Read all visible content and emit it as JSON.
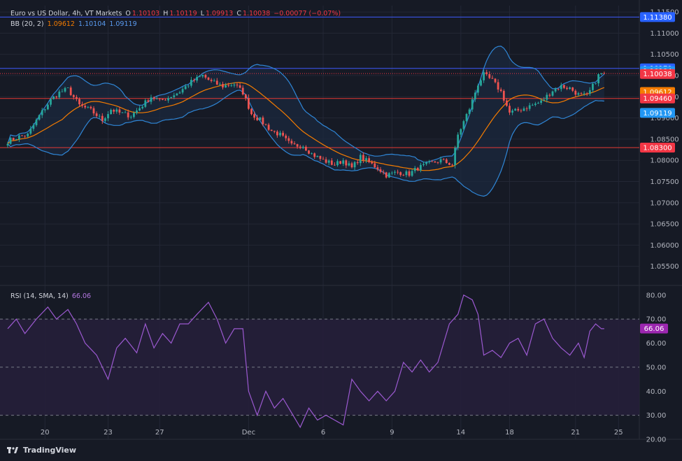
{
  "header": {
    "title": "Euro vs US Dollar, 4h, VT Markets",
    "o_label": "O",
    "o_value": "1.10103",
    "h_label": "H",
    "h_value": "1.10119",
    "l_label": "L",
    "l_value": "1.09913",
    "c_label": "C",
    "c_value": "1.10038",
    "change": "−0.00077 (−0.07%)"
  },
  "bb_legend": {
    "label": "BB (20, 2)",
    "basis": "1.09612",
    "upper": "1.10104",
    "lower": "1.09119"
  },
  "rsi_legend": {
    "label": "RSI (14, SMA, 14)",
    "value": "66.06"
  },
  "branding": {
    "logo_text": "TradingView"
  },
  "colors": {
    "background": "#161a25",
    "up": "#26a69a",
    "down": "#ef5350",
    "basis": "#f57c00",
    "band": "#2f86d6",
    "band_fill": "#1b2a3e",
    "rsi_line": "#9b59d0",
    "rsi_fill": "#251f3a",
    "hline_blue": "#3d5afe",
    "hline_red": "#e53935"
  },
  "chart_data": [
    {
      "type": "candlestick",
      "title": "Euro vs US Dollar, 4h, VT Markets",
      "ylim": [
        1.0505,
        1.1165
      ],
      "y_ticks": [
        "1.11500",
        "1.11000",
        "1.10500",
        "1.10000",
        "1.09500",
        "1.09000",
        "1.08500",
        "1.08000",
        "1.07500",
        "1.07000",
        "1.06500",
        "1.06000",
        "1.05500"
      ],
      "x_tick_labels": [
        "20",
        "23",
        "27",
        "Dec",
        "6",
        "9",
        "14",
        "18",
        "21",
        "25"
      ],
      "x_tick_bar_index": [
        13,
        35,
        53,
        84,
        110,
        134,
        158,
        175,
        198,
        213
      ],
      "horizontal_levels": [
        {
          "price": 1.1138,
          "color": "blue"
        },
        {
          "price": 1.1017,
          "color": "blue"
        },
        {
          "price": 1.0946,
          "color": "red"
        },
        {
          "price": 1.083,
          "color": "red"
        }
      ],
      "price_labels": [
        {
          "text": "1.11380",
          "price": 1.1138,
          "color": "#2962ff"
        },
        {
          "text": "1.10170",
          "price": 1.1017,
          "color": "#2962ff"
        },
        {
          "text": "1.10104",
          "price": 1.10104,
          "color": "#2196f3"
        },
        {
          "text": "1.10038",
          "price": 1.10038,
          "color": "#f23645"
        },
        {
          "text": "1.09612",
          "price": 1.09612,
          "color": "#f57c00"
        },
        {
          "text": "1.09460",
          "price": 1.0946,
          "color": "#f23645"
        },
        {
          "text": "1.09119",
          "price": 1.09119,
          "color": "#2196f3"
        },
        {
          "text": "1.08300",
          "price": 1.083,
          "color": "#f23645"
        }
      ],
      "close_anchors": [
        [
          0,
          1.0845
        ],
        [
          4,
          1.0856
        ],
        [
          7,
          1.086
        ],
        [
          11,
          1.0905
        ],
        [
          15,
          1.0942
        ],
        [
          18,
          1.096
        ],
        [
          21,
          1.0968
        ],
        [
          25,
          1.093
        ],
        [
          29,
          1.0918
        ],
        [
          33,
          1.0895
        ],
        [
          36,
          1.092
        ],
        [
          39,
          1.0912
        ],
        [
          43,
          1.0905
        ],
        [
          47,
          1.093
        ],
        [
          50,
          1.095
        ],
        [
          53,
          1.094
        ],
        [
          56,
          1.0948
        ],
        [
          60,
          1.0962
        ],
        [
          64,
          1.0985
        ],
        [
          68,
          1.1
        ],
        [
          71,
          1.0985
        ],
        [
          75,
          1.0975
        ],
        [
          79,
          1.098
        ],
        [
          82,
          1.096
        ],
        [
          85,
          1.091
        ],
        [
          88,
          1.0895
        ],
        [
          92,
          1.087
        ],
        [
          95,
          1.086
        ],
        [
          99,
          1.0835
        ],
        [
          103,
          1.0835
        ],
        [
          106,
          1.0815
        ],
        [
          110,
          1.08
        ],
        [
          114,
          1.079
        ],
        [
          117,
          1.08
        ],
        [
          120,
          1.0782
        ],
        [
          123,
          1.0808
        ],
        [
          126,
          1.0795
        ],
        [
          129,
          1.0782
        ],
        [
          132,
          1.0765
        ],
        [
          136,
          1.0772
        ],
        [
          140,
          1.0768
        ],
        [
          143,
          1.0782
        ],
        [
          147,
          1.0792
        ],
        [
          151,
          1.08
        ],
        [
          155,
          1.079
        ],
        [
          157,
          1.086
        ],
        [
          161,
          1.0922
        ],
        [
          164,
          1.098
        ],
        [
          166,
          1.1002
        ],
        [
          169,
          1.0988
        ],
        [
          172,
          1.0962
        ],
        [
          175,
          1.0912
        ],
        [
          178,
          1.0918
        ],
        [
          182,
          1.0928
        ],
        [
          186,
          1.0938
        ],
        [
          190,
          1.0965
        ],
        [
          193,
          1.0975
        ],
        [
          196,
          1.097
        ],
        [
          199,
          1.0955
        ],
        [
          202,
          1.0952
        ],
        [
          204,
          1.0975
        ],
        [
          206,
          1.1
        ],
        [
          207,
          1.1004
        ]
      ]
    },
    {
      "type": "line",
      "title": "RSI (14, SMA, 14)",
      "ylim": [
        20,
        84
      ],
      "y_ticks": [
        "80.00",
        "70.00",
        "60.00",
        "50.00",
        "40.00",
        "30.00",
        "20.00"
      ],
      "bands": [
        70,
        50,
        30
      ],
      "current": 66.06,
      "rsi_anchors": [
        [
          0,
          66
        ],
        [
          3,
          70
        ],
        [
          6,
          64
        ],
        [
          10,
          70
        ],
        [
          14,
          75
        ],
        [
          17,
          70
        ],
        [
          21,
          74
        ],
        [
          24,
          68
        ],
        [
          27,
          60
        ],
        [
          31,
          55
        ],
        [
          35,
          45
        ],
        [
          38,
          58
        ],
        [
          41,
          62
        ],
        [
          45,
          56
        ],
        [
          48,
          68
        ],
        [
          51,
          58
        ],
        [
          54,
          64
        ],
        [
          57,
          60
        ],
        [
          60,
          68
        ],
        [
          63,
          68
        ],
        [
          66,
          72
        ],
        [
          70,
          77
        ],
        [
          73,
          70
        ],
        [
          76,
          60
        ],
        [
          79,
          66
        ],
        [
          82,
          66
        ],
        [
          84,
          40
        ],
        [
          87,
          30
        ],
        [
          90,
          40
        ],
        [
          93,
          33
        ],
        [
          96,
          37
        ],
        [
          99,
          31
        ],
        [
          102,
          25
        ],
        [
          105,
          33
        ],
        [
          108,
          28
        ],
        [
          111,
          30
        ],
        [
          114,
          28
        ],
        [
          117,
          26
        ],
        [
          120,
          45
        ],
        [
          123,
          40
        ],
        [
          126,
          36
        ],
        [
          129,
          40
        ],
        [
          132,
          36
        ],
        [
          135,
          40
        ],
        [
          138,
          52
        ],
        [
          141,
          48
        ],
        [
          144,
          53
        ],
        [
          147,
          48
        ],
        [
          150,
          52
        ],
        [
          154,
          68
        ],
        [
          157,
          72
        ],
        [
          159,
          80
        ],
        [
          162,
          78
        ],
        [
          164,
          72
        ],
        [
          166,
          55
        ],
        [
          169,
          57
        ],
        [
          172,
          54
        ],
        [
          175,
          60
        ],
        [
          178,
          62
        ],
        [
          181,
          55
        ],
        [
          184,
          68
        ],
        [
          187,
          70
        ],
        [
          190,
          62
        ],
        [
          193,
          58
        ],
        [
          196,
          55
        ],
        [
          199,
          60
        ],
        [
          201,
          54
        ],
        [
          203,
          65
        ],
        [
          205,
          68
        ],
        [
          207,
          66
        ]
      ]
    }
  ]
}
